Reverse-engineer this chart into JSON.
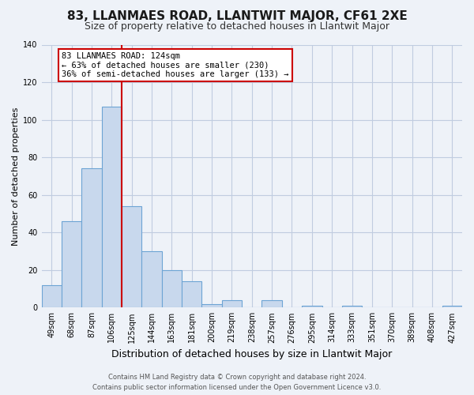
{
  "title": "83, LLANMAES ROAD, LLANTWIT MAJOR, CF61 2XE",
  "subtitle": "Size of property relative to detached houses in Llantwit Major",
  "xlabel": "Distribution of detached houses by size in Llantwit Major",
  "ylabel": "Number of detached properties",
  "bar_labels": [
    "49sqm",
    "68sqm",
    "87sqm",
    "106sqm",
    "125sqm",
    "144sqm",
    "163sqm",
    "181sqm",
    "200sqm",
    "219sqm",
    "238sqm",
    "257sqm",
    "276sqm",
    "295sqm",
    "314sqm",
    "333sqm",
    "351sqm",
    "370sqm",
    "389sqm",
    "408sqm",
    "427sqm"
  ],
  "bar_values": [
    12,
    46,
    74,
    107,
    54,
    30,
    20,
    14,
    2,
    4,
    0,
    4,
    0,
    1,
    0,
    1,
    0,
    0,
    0,
    0,
    1
  ],
  "bar_color": "#c8d8ed",
  "bar_edge_color": "#6da4d4",
  "vline_color": "#cc0000",
  "annotation_title": "83 LLANMAES ROAD: 124sqm",
  "annotation_line1": "← 63% of detached houses are smaller (230)",
  "annotation_line2": "36% of semi-detached houses are larger (133) →",
  "annotation_box_color": "#ffffff",
  "annotation_box_edge": "#cc0000",
  "ylim": [
    0,
    140
  ],
  "footer_line1": "Contains HM Land Registry data © Crown copyright and database right 2024.",
  "footer_line2": "Contains public sector information licensed under the Open Government Licence v3.0.",
  "bg_color": "#eef2f8",
  "plot_bg_color": "#eef2f8",
  "grid_color": "#c0cce0",
  "title_fontsize": 11,
  "subtitle_fontsize": 9,
  "ylabel_fontsize": 8,
  "xlabel_fontsize": 9,
  "tick_fontsize": 7,
  "footer_fontsize": 6
}
